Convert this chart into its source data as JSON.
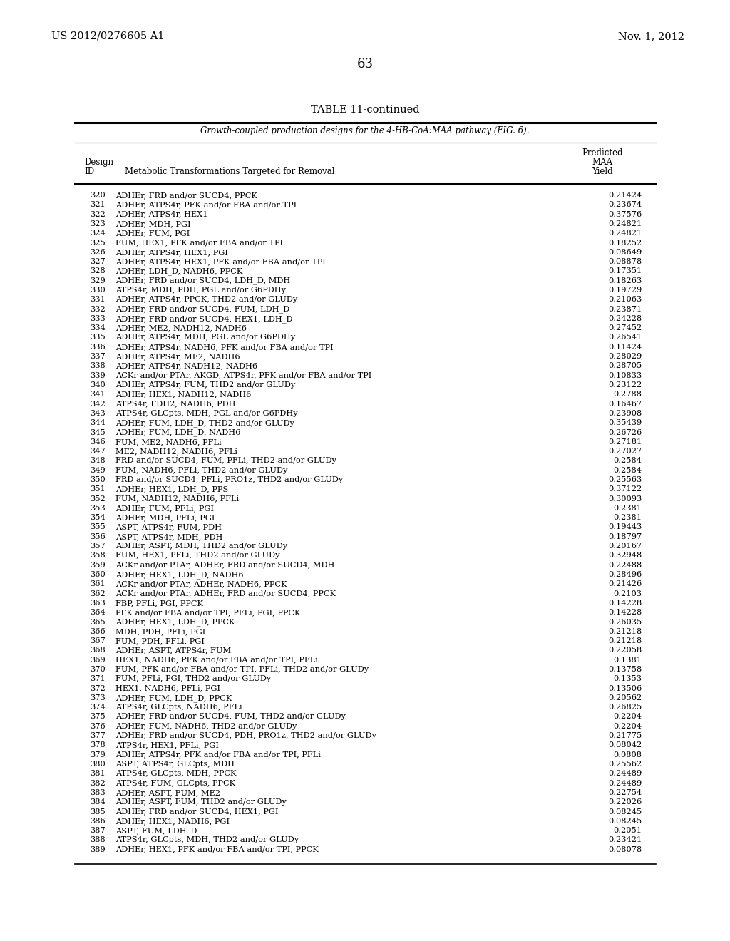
{
  "header_left": "US 2012/0276605 A1",
  "header_right": "Nov. 1, 2012",
  "page_number": "63",
  "table_title": "TABLE 11-continued",
  "table_subtitle": "Growth-coupled production designs for the 4-HB-CoA:MAA pathway (FIG. 6).",
  "col2_header": "Metabolic Transformations Targeted for Removal",
  "rows": [
    [
      "320",
      "ADHEr, FRD and/or SUCD4, PPCK",
      "0.21424"
    ],
    [
      "321",
      "ADHEr, ATPS4r, PFK and/or FBA and/or TPI",
      "0.23674"
    ],
    [
      "322",
      "ADHEr, ATPS4r, HEX1",
      "0.37576"
    ],
    [
      "323",
      "ADHEr, MDH, PGI",
      "0.24821"
    ],
    [
      "324",
      "ADHEr, FUM, PGI",
      "0.24821"
    ],
    [
      "325",
      "FUM, HEX1, PFK and/or FBA and/or TPI",
      "0.18252"
    ],
    [
      "326",
      "ADHEr, ATPS4r, HEX1, PGI",
      "0.08649"
    ],
    [
      "327",
      "ADHEr, ATPS4r, HEX1, PFK and/or FBA and/or TPI",
      "0.08878"
    ],
    [
      "328",
      "ADHEr, LDH_D, NADH6, PPCK",
      "0.17351"
    ],
    [
      "329",
      "ADHEr, FRD and/or SUCD4, LDH_D, MDH",
      "0.18263"
    ],
    [
      "330",
      "ATPS4r, MDH, PDH, PGL and/or G6PDHy",
      "0.19729"
    ],
    [
      "331",
      "ADHEr, ATPS4r, PPCK, THD2 and/or GLUDy",
      "0.21063"
    ],
    [
      "332",
      "ADHEr, FRD and/or SUCD4, FUM, LDH_D",
      "0.23871"
    ],
    [
      "333",
      "ADHEr, FRD and/or SUCD4, HEX1, LDH_D",
      "0.24228"
    ],
    [
      "334",
      "ADHEr, ME2, NADH12, NADH6",
      "0.27452"
    ],
    [
      "335",
      "ADHEr, ATPS4r, MDH, PGL and/or G6PDHy",
      "0.26541"
    ],
    [
      "336",
      "ADHEr, ATPS4r, NADH6, PFK and/or FBA and/or TPI",
      "0.11424"
    ],
    [
      "337",
      "ADHEr, ATPS4r, ME2, NADH6",
      "0.28029"
    ],
    [
      "338",
      "ADHEr, ATPS4r, NADH12, NADH6",
      "0.28705"
    ],
    [
      "339",
      "ACKr and/or PTAr, AKGD, ATPS4r, PFK and/or FBA and/or TPI",
      "0.10833"
    ],
    [
      "340",
      "ADHEr, ATPS4r, FUM, THD2 and/or GLUDy",
      "0.23122"
    ],
    [
      "341",
      "ADHEr, HEX1, NADH12, NADH6",
      "0.2788"
    ],
    [
      "342",
      "ATPS4r, FDH2, NADH6, PDH",
      "0.16467"
    ],
    [
      "343",
      "ATPS4r, GLCpts, MDH, PGL and/or G6PDHy",
      "0.23908"
    ],
    [
      "344",
      "ADHEr, FUM, LDH_D, THD2 and/or GLUDy",
      "0.35439"
    ],
    [
      "345",
      "ADHEr, FUM, LDH_D, NADH6",
      "0.26726"
    ],
    [
      "346",
      "FUM, ME2, NADH6, PFLi",
      "0.27181"
    ],
    [
      "347",
      "ME2, NADH12, NADH6, PFLi",
      "0.27027"
    ],
    [
      "348",
      "FRD and/or SUCD4, FUM, PFLi, THD2 and/or GLUDy",
      "0.2584"
    ],
    [
      "349",
      "FUM, NADH6, PFLi, THD2 and/or GLUDy",
      "0.2584"
    ],
    [
      "350",
      "FRD and/or SUCD4, PFLi, PRO1z, THD2 and/or GLUDy",
      "0.25563"
    ],
    [
      "351",
      "ADHEr, HEX1, LDH_D, PPS",
      "0.37122"
    ],
    [
      "352",
      "FUM, NADH12, NADH6, PFLi",
      "0.30093"
    ],
    [
      "353",
      "ADHEr, FUM, PFLi, PGI",
      "0.2381"
    ],
    [
      "354",
      "ADHEr, MDH, PFLi, PGI",
      "0.2381"
    ],
    [
      "355",
      "ASPT, ATPS4r, FUM, PDH",
      "0.19443"
    ],
    [
      "356",
      "ASPT, ATPS4r, MDH, PDH",
      "0.18797"
    ],
    [
      "357",
      "ADHEr, ASPT, MDH, THD2 and/or GLUDy",
      "0.20167"
    ],
    [
      "358",
      "FUM, HEX1, PFLi, THD2 and/or GLUDy",
      "0.32948"
    ],
    [
      "359",
      "ACKr and/or PTAr, ADHEr, FRD and/or SUCD4, MDH",
      "0.22488"
    ],
    [
      "360",
      "ADHEr, HEX1, LDH_D, NADH6",
      "0.28496"
    ],
    [
      "361",
      "ACKr and/or PTAr, ADHEr, NADH6, PPCK",
      "0.21426"
    ],
    [
      "362",
      "ACKr and/or PTAr, ADHEr, FRD and/or SUCD4, PPCK",
      "0.2103"
    ],
    [
      "363",
      "FBP, PFLi, PGI, PPCK",
      "0.14228"
    ],
    [
      "364",
      "PFK and/or FBA and/or TPI, PFLi, PGI, PPCK",
      "0.14228"
    ],
    [
      "365",
      "ADHEr, HEX1, LDH_D, PPCK",
      "0.26035"
    ],
    [
      "366",
      "MDH, PDH, PFLi, PGI",
      "0.21218"
    ],
    [
      "367",
      "FUM, PDH, PFLi, PGI",
      "0.21218"
    ],
    [
      "368",
      "ADHEr, ASPT, ATPS4r, FUM",
      "0.22058"
    ],
    [
      "369",
      "HEX1, NADH6, PFK and/or FBA and/or TPI, PFLi",
      "0.1381"
    ],
    [
      "370",
      "FUM, PFK and/or FBA and/or TPI, PFLi, THD2 and/or GLUDy",
      "0.13758"
    ],
    [
      "371",
      "FUM, PFLi, PGI, THD2 and/or GLUDy",
      "0.1353"
    ],
    [
      "372",
      "HEX1, NADH6, PFLi, PGI",
      "0.13506"
    ],
    [
      "373",
      "ADHEr, FUM, LDH_D, PPCK",
      "0.20562"
    ],
    [
      "374",
      "ATPS4r, GLCpts, NADH6, PFLi",
      "0.26825"
    ],
    [
      "375",
      "ADHEr, FRD and/or SUCD4, FUM, THD2 and/or GLUDy",
      "0.2204"
    ],
    [
      "376",
      "ADHEr, FUM, NADH6, THD2 and/or GLUDy",
      "0.2204"
    ],
    [
      "377",
      "ADHEr, FRD and/or SUCD4, PDH, PRO1z, THD2 and/or GLUDy",
      "0.21775"
    ],
    [
      "378",
      "ATPS4r, HEX1, PFLi, PGI",
      "0.08042"
    ],
    [
      "379",
      "ADHEr, ATPS4r, PFK and/or FBA and/or TPI, PFLi",
      "0.0808"
    ],
    [
      "380",
      "ASPT, ATPS4r, GLCpts, MDH",
      "0.25562"
    ],
    [
      "381",
      "ATPS4r, GLCpts, MDH, PPCK",
      "0.24489"
    ],
    [
      "382",
      "ATPS4r, FUM, GLCpts, PPCK",
      "0.24489"
    ],
    [
      "383",
      "ADHEr, ASPT, FUM, ME2",
      "0.22754"
    ],
    [
      "384",
      "ADHEr, ASPT, FUM, THD2 and/or GLUDy",
      "0.22026"
    ],
    [
      "385",
      "ADHEr, FRD and/or SUCD4, HEX1, PGI",
      "0.08245"
    ],
    [
      "386",
      "ADHEr, HEX1, NADH6, PGI",
      "0.08245"
    ],
    [
      "387",
      "ASPT, FUM, LDH_D",
      "0.2051"
    ],
    [
      "388",
      "ATPS4r, GLCpts, MDH, THD2 and/or GLUDy",
      "0.23421"
    ],
    [
      "389",
      "ADHEr, HEX1, PFK and/or FBA and/or TPI, PPCK",
      "0.08078"
    ]
  ]
}
